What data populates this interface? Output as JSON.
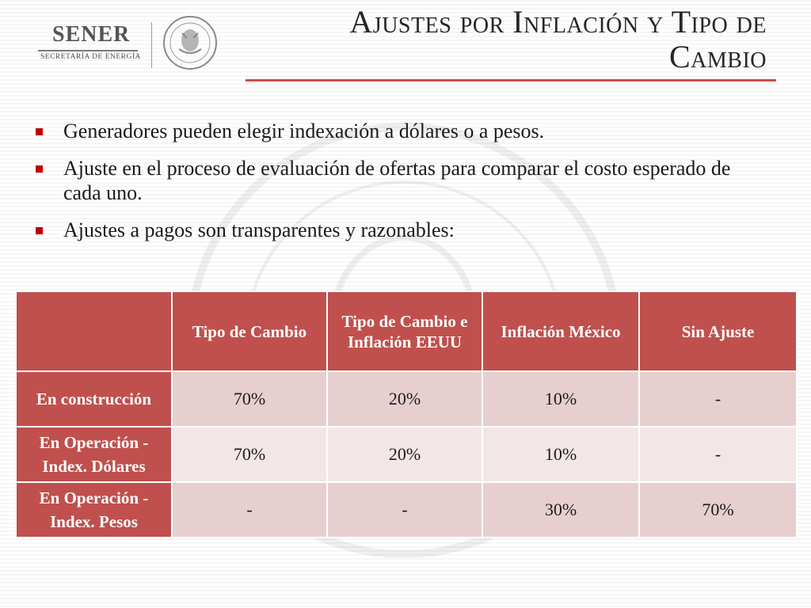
{
  "header": {
    "logo_name": "SENER",
    "logo_subtitle": "SECRETARÍA DE ENERGÍA",
    "seal_icon": "mexican-coat-of-arms-seal",
    "title": "Ajustes por Inflación y Tipo de Cambio"
  },
  "bullets": [
    "Generadores pueden elegir indexación a dólares o a pesos.",
    "Ajuste en el proceso de evaluación de ofertas para comparar el costo esperado de cada uno.",
    "Ajustes a pagos son transparentes y razonables:"
  ],
  "table": {
    "columns": [
      "",
      "Tipo de Cambio",
      "Tipo de Cambio e Inflación EEUU",
      "Inflación México",
      "Sin Ajuste"
    ],
    "rows": [
      {
        "label": "En construcción",
        "values": [
          "70%",
          "20%",
          "10%",
          "-"
        ]
      },
      {
        "label": "En Operación - Index. Dólares",
        "values": [
          "70%",
          "20%",
          "10%",
          "-"
        ]
      },
      {
        "label": "En Operación - Index. Pesos",
        "values": [
          "-",
          "-",
          "30%",
          "70%"
        ]
      }
    ]
  },
  "colors": {
    "accent": "#c0504d",
    "bullet": "#c00000",
    "row_dark": "#e8cfcf",
    "row_light": "#f3e6e6"
  }
}
